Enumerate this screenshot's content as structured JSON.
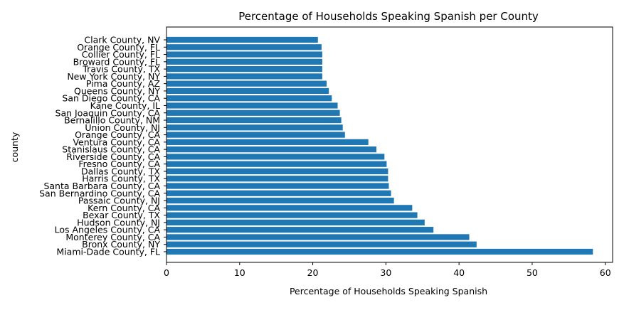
{
  "chart_data": {
    "type": "bar",
    "orientation": "horizontal",
    "title": "Percentage of Households Speaking Spanish per County",
    "xlabel": "Percentage of Households Speaking Spanish",
    "ylabel": "county",
    "xlim": [
      0,
      61
    ],
    "xticks": [
      0,
      10,
      20,
      30,
      40,
      50,
      60
    ],
    "grid": false,
    "bar_color": "#1f77b4",
    "categories": [
      "Miami-Dade County, FL",
      "Bronx County, NY",
      "Monterey County, CA",
      "Los Angeles County, CA",
      "Hudson County, NJ",
      "Bexar County, TX",
      "Kern County, CA",
      "Passaic County, NJ",
      "San Bernardino County, CA",
      "Santa Barbara County, CA",
      "Harris County, TX",
      "Dallas County, TX",
      "Fresno County, CA",
      "Riverside County, CA",
      "Stanislaus County, CA",
      "Ventura County, CA",
      "Orange County, CA",
      "Union County, NJ",
      "Bernalillo County, NM",
      "San Joaquin County, CA",
      "Kane County, IL",
      "San Diego County, CA",
      "Queens County, NY",
      "Pima County, AZ",
      "New York County, NY",
      "Travis County, TX",
      "Broward County, FL",
      "Collier County, FL",
      "Orange County, FL",
      "Clark County, NV"
    ],
    "values": [
      58.3,
      42.4,
      41.4,
      36.5,
      35.3,
      34.3,
      33.6,
      31.1,
      30.7,
      30.4,
      30.3,
      30.3,
      30.1,
      29.8,
      28.7,
      27.6,
      24.4,
      24.1,
      23.9,
      23.7,
      23.4,
      22.6,
      22.2,
      21.9,
      21.3,
      21.3,
      21.3,
      21.3,
      21.2,
      20.7
    ]
  }
}
